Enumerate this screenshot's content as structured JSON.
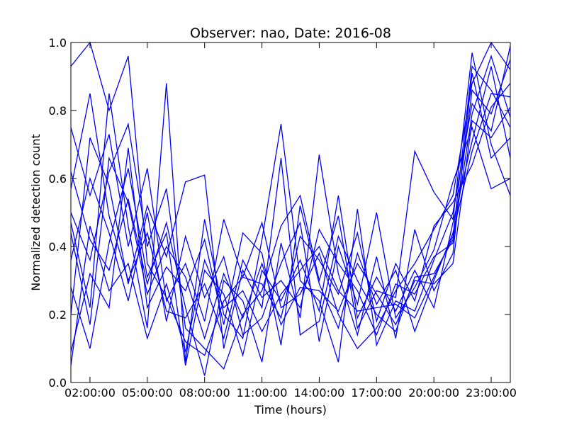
{
  "chart_data": {
    "type": "line",
    "title": "Observer: nao, Date: 2016-08",
    "xlabel": "Time (hours)",
    "ylabel": "Normalized detection count",
    "xlim": [
      1,
      24
    ],
    "ylim": [
      0,
      1
    ],
    "x_ticks": [
      2,
      5,
      8,
      11,
      14,
      17,
      20,
      23
    ],
    "x_tick_labels": [
      "02:00:00",
      "05:00:00",
      "08:00:00",
      "11:00:00",
      "14:00:00",
      "17:00:00",
      "20:00:00",
      "23:00:00"
    ],
    "y_ticks": [
      0,
      0.2,
      0.4,
      0.6,
      0.8,
      1.0
    ],
    "y_tick_labels": [
      "0.0",
      "0.2",
      "0.4",
      "0.6",
      "0.8",
      "1.0"
    ],
    "grid": false,
    "line_color": "#0000ff",
    "x": [
      1,
      2,
      3,
      4,
      5,
      6,
      7,
      8,
      9,
      10,
      11,
      12,
      13,
      14,
      15,
      16,
      17,
      18,
      19,
      20,
      21,
      22,
      23,
      24
    ],
    "series": [
      {
        "values": [
          0.93,
          1.0,
          0.8,
          0.96,
          0.35,
          0.25,
          0.12,
          0.08,
          0.24,
          0.31,
          0.47,
          0.22,
          0.26,
          0.38,
          0.2,
          0.1,
          0.16,
          0.27,
          0.35,
          0.45,
          0.55,
          0.88,
          1.0,
          0.92
        ]
      },
      {
        "values": [
          0.2,
          0.72,
          0.58,
          0.29,
          0.52,
          0.37,
          0.59,
          0.61,
          0.1,
          0.33,
          0.22,
          0.66,
          0.14,
          0.18,
          0.43,
          0.3,
          0.2,
          0.15,
          0.31,
          0.32,
          0.42,
          0.79,
          0.96,
          0.78
        ]
      },
      {
        "values": [
          0.5,
          0.36,
          0.62,
          0.76,
          0.4,
          0.57,
          0.16,
          0.1,
          0.04,
          0.2,
          0.27,
          0.46,
          0.55,
          0.3,
          0.49,
          0.16,
          0.27,
          0.25,
          0.68,
          0.56,
          0.48,
          0.97,
          0.7,
          0.55
        ]
      },
      {
        "values": [
          0.47,
          0.22,
          0.85,
          0.46,
          0.16,
          0.88,
          0.06,
          0.48,
          0.2,
          0.13,
          0.42,
          0.76,
          0.3,
          0.24,
          0.06,
          0.51,
          0.11,
          0.24,
          0.21,
          0.36,
          0.5,
          0.82,
          0.74,
          0.99
        ]
      },
      {
        "values": [
          0.36,
          0.6,
          0.44,
          0.24,
          0.5,
          0.18,
          0.43,
          0.25,
          0.37,
          0.14,
          0.19,
          0.35,
          0.47,
          0.12,
          0.4,
          0.23,
          0.5,
          0.19,
          0.28,
          0.39,
          0.59,
          0.75,
          0.57,
          0.6
        ]
      },
      {
        "values": [
          0.09,
          0.32,
          0.22,
          0.69,
          0.22,
          0.34,
          0.27,
          0.42,
          0.17,
          0.44,
          0.38,
          0.11,
          0.52,
          0.29,
          0.16,
          0.38,
          0.23,
          0.33,
          0.15,
          0.3,
          0.44,
          0.68,
          0.85,
          0.84
        ]
      },
      {
        "values": [
          0.62,
          0.42,
          0.33,
          0.54,
          0.29,
          0.47,
          0.22,
          0.02,
          0.3,
          0.24,
          0.06,
          0.41,
          0.19,
          0.67,
          0.32,
          0.14,
          0.37,
          0.13,
          0.45,
          0.27,
          0.38,
          0.91,
          0.66,
          0.72
        ]
      },
      {
        "values": [
          0.75,
          0.55,
          0.73,
          0.4,
          0.63,
          0.24,
          0.35,
          0.18,
          0.48,
          0.31,
          0.29,
          0.19,
          0.43,
          0.36,
          0.26,
          0.44,
          0.18,
          0.35,
          0.24,
          0.46,
          0.53,
          0.64,
          0.81,
          0.88
        ]
      },
      {
        "values": [
          0.28,
          0.1,
          0.41,
          0.63,
          0.31,
          0.44,
          0.05,
          0.33,
          0.26,
          0.08,
          0.33,
          0.24,
          0.36,
          0.21,
          0.55,
          0.19,
          0.31,
          0.21,
          0.33,
          0.22,
          0.47,
          0.71,
          0.93,
          0.66
        ]
      },
      {
        "values": [
          0.57,
          0.85,
          0.49,
          0.3,
          0.44,
          0.21,
          0.19,
          0.29,
          0.13,
          0.36,
          0.25,
          0.3,
          0.22,
          0.45,
          0.35,
          0.27,
          0.14,
          0.29,
          0.26,
          0.37,
          0.41,
          0.86,
          0.79,
          0.95
        ]
      },
      {
        "values": [
          0.44,
          0.17,
          0.66,
          0.53,
          0.26,
          0.4,
          0.31,
          0.13,
          0.32,
          0.19,
          0.35,
          0.17,
          0.28,
          0.27,
          0.21,
          0.35,
          0.26,
          0.17,
          0.3,
          0.29,
          0.35,
          0.77,
          0.72,
          0.81
        ]
      },
      {
        "values": [
          0.05,
          0.46,
          0.27,
          0.35,
          0.13,
          0.29,
          0.09,
          0.36,
          0.22,
          0.27,
          0.15,
          0.26,
          0.33,
          0.4,
          0.27,
          0.21,
          0.22,
          0.23,
          0.19,
          0.31,
          0.43,
          0.93,
          0.86,
          0.75
        ]
      }
    ]
  }
}
